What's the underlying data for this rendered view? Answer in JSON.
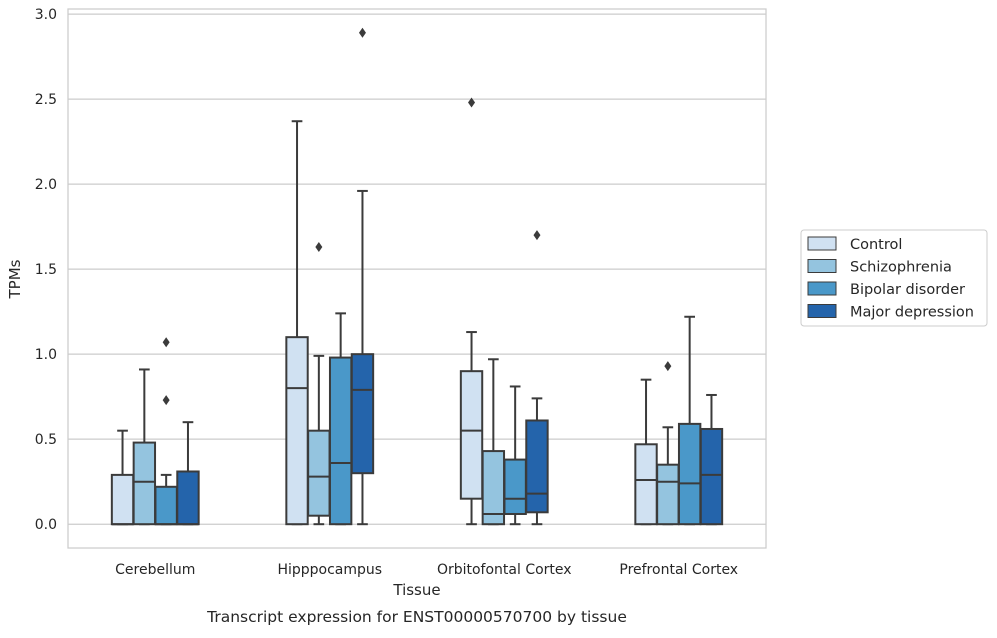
{
  "caption": "Transcript expression for ENST00000570700 by tissue",
  "chart_data": {
    "type": "boxplot",
    "xlabel": "Tissue",
    "ylabel": "TPMs",
    "ylim": [
      -0.14,
      3.03
    ],
    "yticks": [
      "0.0",
      "0.5",
      "1.0",
      "1.5",
      "2.0",
      "2.5",
      "3.0"
    ],
    "grid": "horizontal",
    "legend_position": "right",
    "categories": [
      "Cerebellum",
      "Hipppocampus",
      "Orbitofontal Cortex",
      "Prefrontal Cortex"
    ],
    "series": [
      {
        "name": "Control",
        "color": "#d0e1f2",
        "boxes": [
          {
            "q1": 0.0,
            "median": 0.0,
            "q3": 0.29,
            "whisker_low": 0.0,
            "whisker_high": 0.55,
            "outliers": []
          },
          {
            "q1": 0.0,
            "median": 0.8,
            "q3": 1.1,
            "whisker_low": 0.0,
            "whisker_high": 2.37,
            "outliers": []
          },
          {
            "q1": 0.15,
            "median": 0.55,
            "q3": 0.9,
            "whisker_low": 0.0,
            "whisker_high": 1.13,
            "outliers": [
              2.48
            ]
          },
          {
            "q1": 0.0,
            "median": 0.26,
            "q3": 0.47,
            "whisker_low": 0.0,
            "whisker_high": 0.85,
            "outliers": []
          }
        ]
      },
      {
        "name": "Schizophrenia",
        "color": "#94c4df",
        "boxes": [
          {
            "q1": 0.0,
            "median": 0.25,
            "q3": 0.48,
            "whisker_low": 0.0,
            "whisker_high": 0.91,
            "outliers": []
          },
          {
            "q1": 0.05,
            "median": 0.28,
            "q3": 0.55,
            "whisker_low": 0.0,
            "whisker_high": 0.99,
            "outliers": [
              1.63
            ]
          },
          {
            "q1": 0.0,
            "median": 0.06,
            "q3": 0.43,
            "whisker_low": 0.0,
            "whisker_high": 0.97,
            "outliers": []
          },
          {
            "q1": 0.0,
            "median": 0.25,
            "q3": 0.35,
            "whisker_low": 0.0,
            "whisker_high": 0.57,
            "outliers": [
              0.93
            ]
          }
        ]
      },
      {
        "name": "Bipolar disorder",
        "color": "#4a98c9",
        "boxes": [
          {
            "q1": 0.0,
            "median": 0.0,
            "q3": 0.22,
            "whisker_low": 0.0,
            "whisker_high": 0.29,
            "outliers": [
              0.73,
              1.07
            ]
          },
          {
            "q1": 0.0,
            "median": 0.36,
            "q3": 0.98,
            "whisker_low": 0.0,
            "whisker_high": 1.24,
            "outliers": []
          },
          {
            "q1": 0.06,
            "median": 0.15,
            "q3": 0.38,
            "whisker_low": 0.0,
            "whisker_high": 0.81,
            "outliers": []
          },
          {
            "q1": 0.0,
            "median": 0.24,
            "q3": 0.59,
            "whisker_low": 0.0,
            "whisker_high": 1.22,
            "outliers": []
          }
        ]
      },
      {
        "name": "Major depression",
        "color": "#2464ab",
        "boxes": [
          {
            "q1": 0.0,
            "median": 0.0,
            "q3": 0.31,
            "whisker_low": 0.0,
            "whisker_high": 0.6,
            "outliers": []
          },
          {
            "q1": 0.3,
            "median": 0.79,
            "q3": 1.0,
            "whisker_low": 0.0,
            "whisker_high": 1.96,
            "outliers": [
              2.89
            ]
          },
          {
            "q1": 0.07,
            "median": 0.18,
            "q3": 0.61,
            "whisker_low": 0.0,
            "whisker_high": 0.74,
            "outliers": [
              1.7
            ]
          },
          {
            "q1": 0.0,
            "median": 0.29,
            "q3": 0.56,
            "whisker_low": 0.0,
            "whisker_high": 0.76,
            "outliers": []
          }
        ]
      }
    ]
  }
}
